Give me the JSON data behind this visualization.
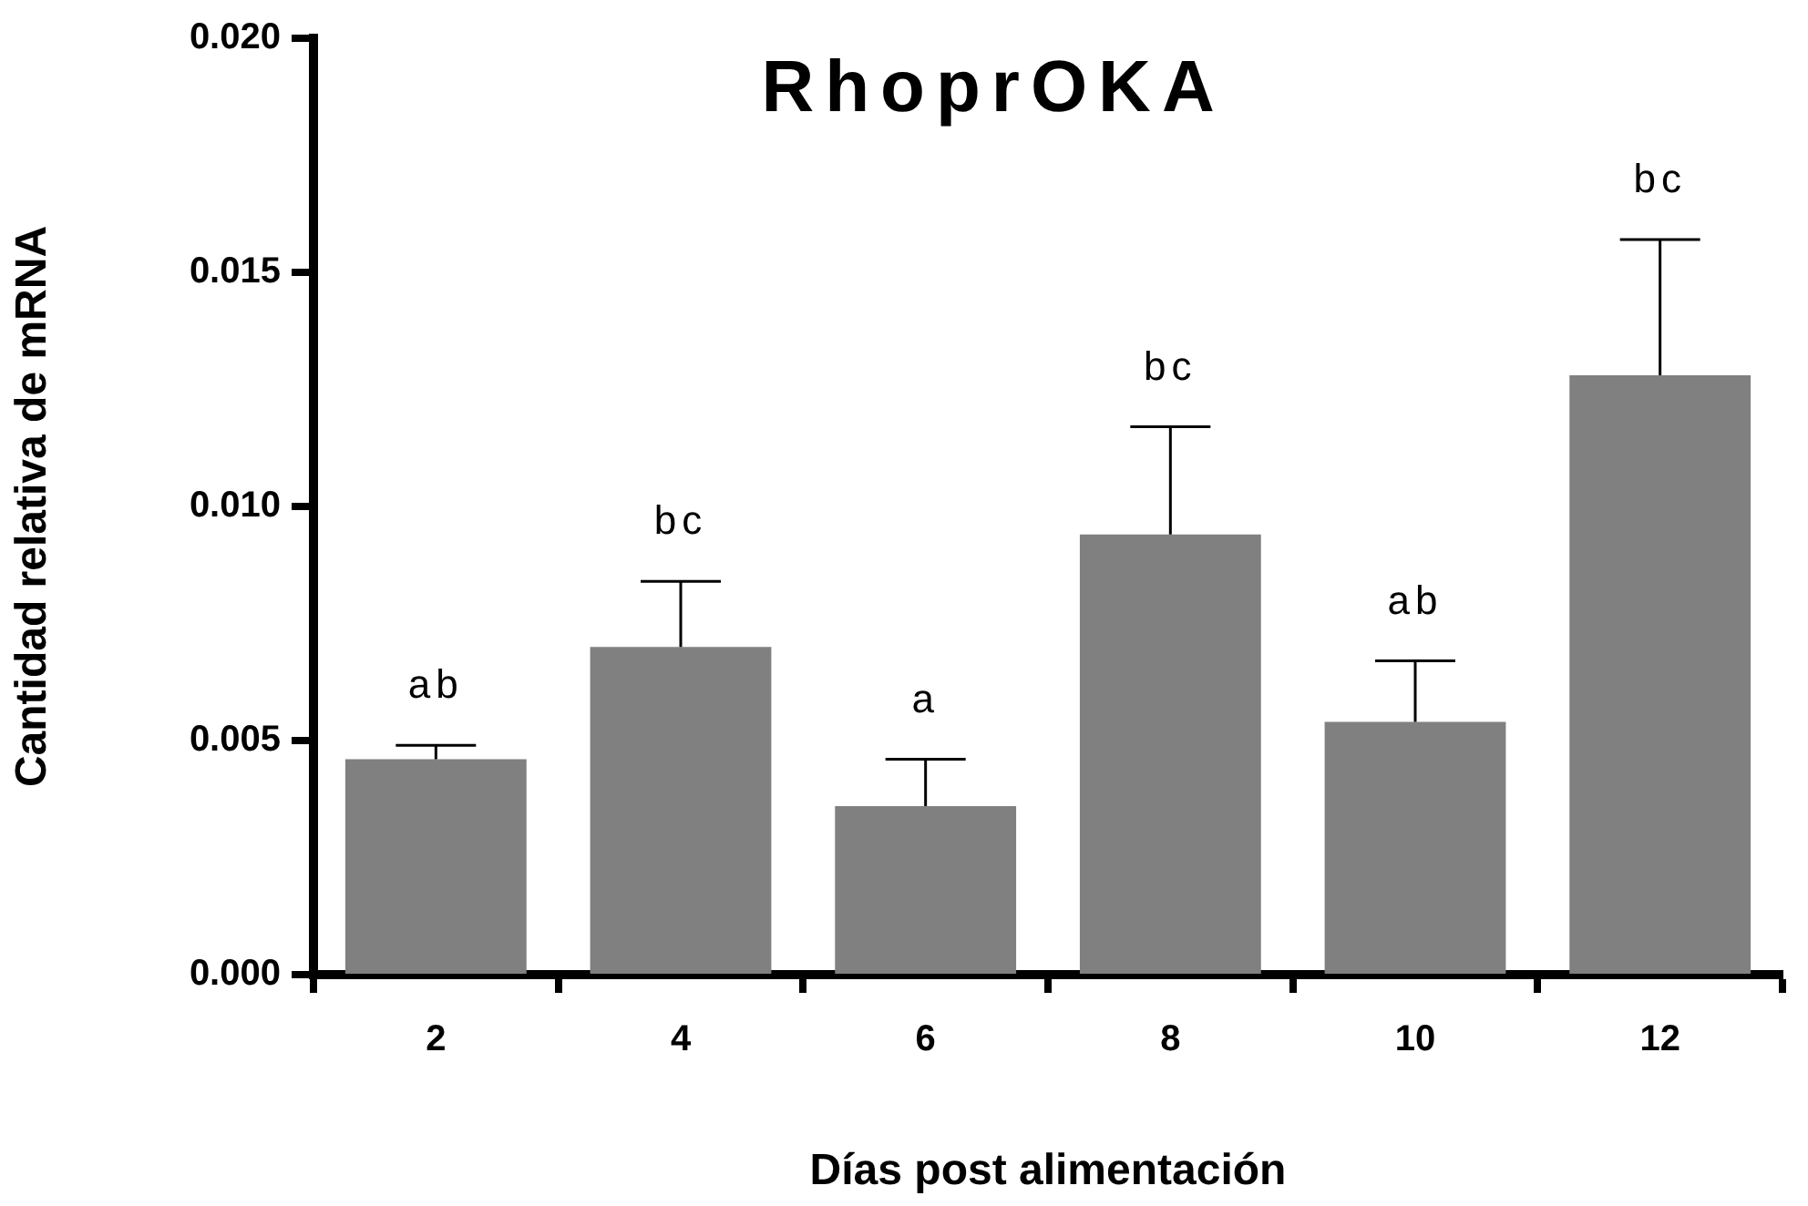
{
  "chart_data": {
    "type": "bar",
    "title": "RhoprOKA",
    "xlabel": "Días post alimentación",
    "ylabel": "Cantidad relativa de mRNA",
    "categories": [
      "2",
      "4",
      "6",
      "8",
      "10",
      "12"
    ],
    "values": [
      0.0046,
      0.007,
      0.0036,
      0.0094,
      0.0054,
      0.0128
    ],
    "errors": [
      [
        0.0046,
        0.0049
      ],
      [
        0.007,
        0.0084
      ],
      [
        0.0036,
        0.0046
      ],
      [
        0.0094,
        0.0117
      ],
      [
        0.0054,
        0.0067
      ],
      [
        0.0128,
        0.0157
      ]
    ],
    "color": "#808080",
    "ylim": [
      0,
      0.02
    ],
    "yticks": [
      {
        "value": 0,
        "label": "0.000"
      },
      {
        "value": 0.005,
        "label": "0.005"
      },
      {
        "value": 0.01,
        "label": "0.010"
      },
      {
        "value": 0.015,
        "label": "0.015"
      },
      {
        "value": 0.02,
        "label": "0.020"
      }
    ],
    "annotations": [
      {
        "text": "ab",
        "x": "2",
        "y": 0.0049
      },
      {
        "text": "bc",
        "x": "4",
        "y": 0.0084
      },
      {
        "text": "a",
        "x": "6",
        "y": 0.0046
      },
      {
        "text": "bc",
        "x": "8",
        "y": 0.0117
      },
      {
        "text": "ab",
        "x": "10",
        "y": 0.0067
      },
      {
        "text": "bc",
        "x": "12",
        "y": 0.0157
      }
    ],
    "legend": false
  }
}
